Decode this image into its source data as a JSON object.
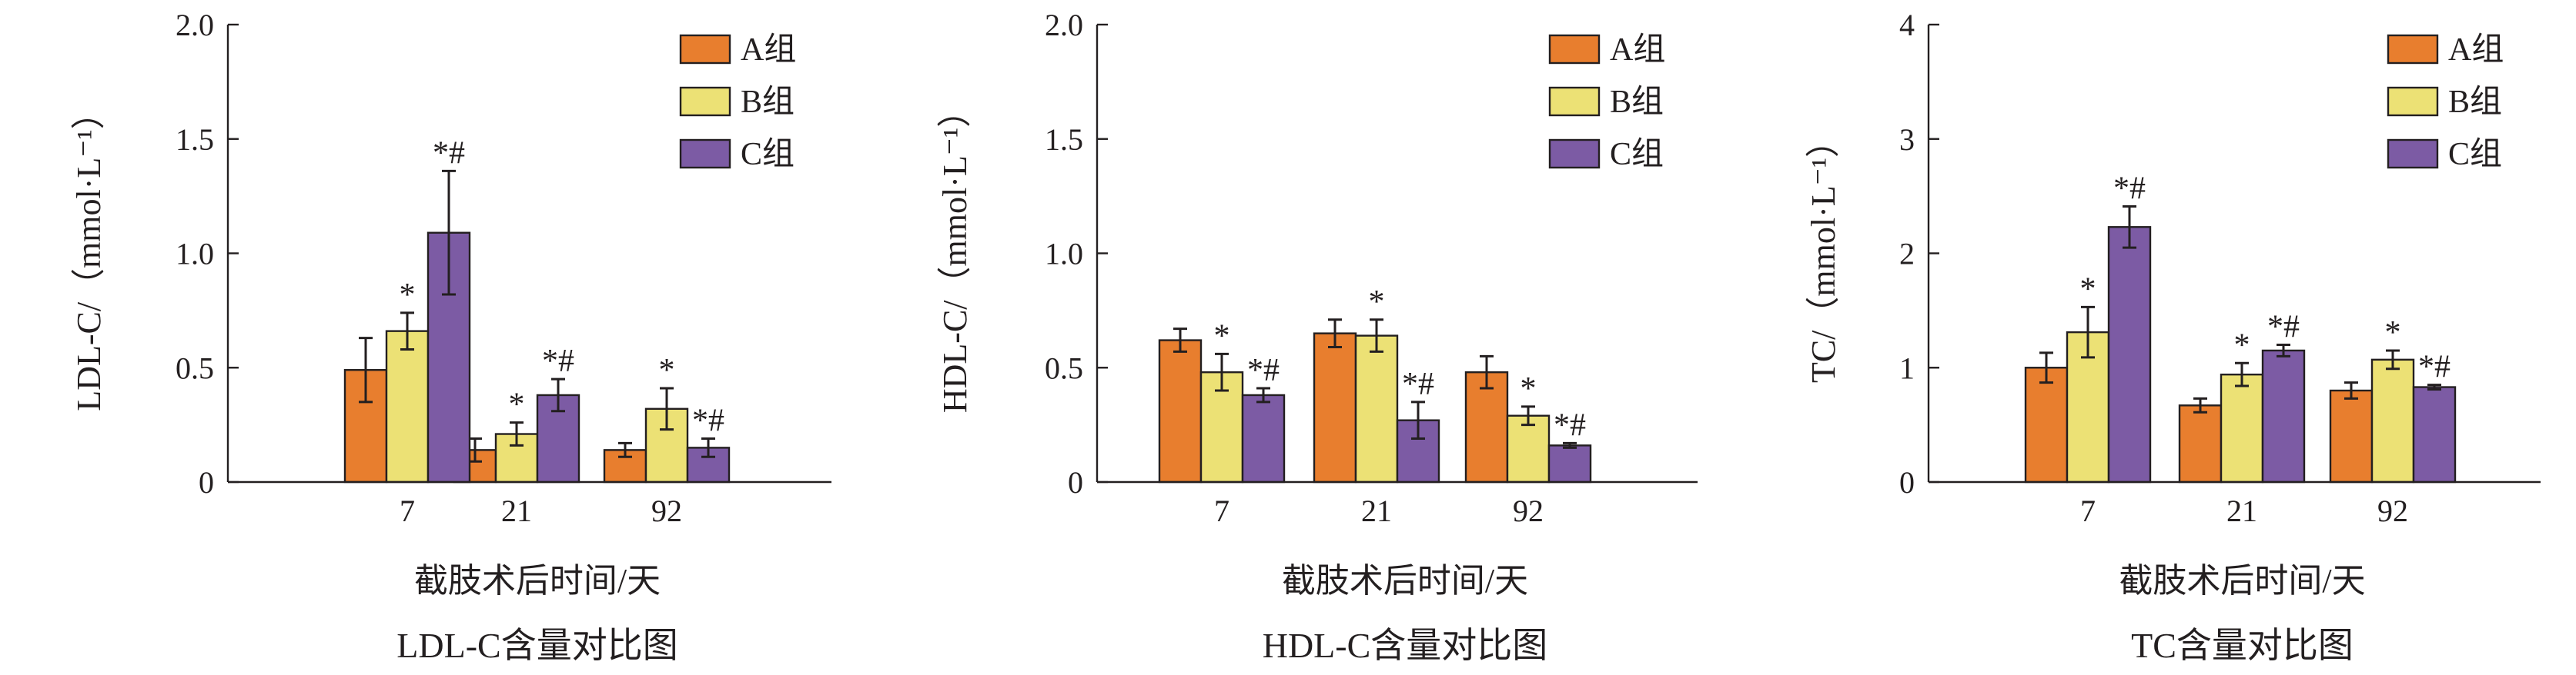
{
  "legend": [
    "A组",
    "B组",
    "C组"
  ],
  "colors": {
    "A": "#e87e2e",
    "B": "#ece175",
    "C": "#7c5ba4"
  },
  "chart_data": [
    {
      "type": "bar",
      "title": "LDL-C含量对比图",
      "xlabel": "截肢术后时间/天",
      "ylabel": "LDL-C/（mmol·L⁻¹）",
      "ylim": [
        0,
        2.0
      ],
      "yticks": [
        0,
        0.5,
        1.0,
        1.5,
        2.0
      ],
      "ytick_labels": [
        "0",
        "0.5",
        "1.0",
        "1.5",
        "2.0"
      ],
      "categories": [
        "7",
        "21",
        "92"
      ],
      "legend_position": "top-right",
      "series": [
        {
          "name": "A组",
          "values": [
            0.49,
            0.14,
            0.14
          ],
          "errors": [
            0.14,
            0.05,
            0.03
          ],
          "marks": [
            "",
            "",
            ""
          ]
        },
        {
          "name": "B组",
          "values": [
            0.66,
            0.21,
            0.32
          ],
          "errors": [
            0.08,
            0.05,
            0.09
          ],
          "marks": [
            "*",
            "*",
            "*"
          ]
        },
        {
          "name": "C组",
          "values": [
            1.09,
            0.38,
            0.15
          ],
          "errors": [
            0.27,
            0.07,
            0.04
          ],
          "marks": [
            "*#",
            "*#",
            "*#"
          ]
        }
      ]
    },
    {
      "type": "bar",
      "title": "HDL-C含量对比图",
      "xlabel": "截肢术后时间/天",
      "ylabel": "HDL-C/（mmol·L⁻¹）",
      "ylim": [
        0,
        2.0
      ],
      "yticks": [
        0,
        0.5,
        1.0,
        1.5,
        2.0
      ],
      "ytick_labels": [
        "0",
        "0.5",
        "1.0",
        "1.5",
        "2.0"
      ],
      "categories": [
        "7",
        "21",
        "92"
      ],
      "legend_position": "top-right",
      "series": [
        {
          "name": "A组",
          "values": [
            0.62,
            0.65,
            0.48
          ],
          "errors": [
            0.05,
            0.06,
            0.07
          ],
          "marks": [
            "",
            "",
            ""
          ]
        },
        {
          "name": "B组",
          "values": [
            0.48,
            0.64,
            0.29
          ],
          "errors": [
            0.08,
            0.07,
            0.04
          ],
          "marks": [
            "*",
            "*",
            "*"
          ]
        },
        {
          "name": "C组",
          "values": [
            0.38,
            0.27,
            0.16
          ],
          "errors": [
            0.03,
            0.08,
            0.01
          ],
          "marks": [
            "*#",
            "*#",
            "*#"
          ]
        }
      ]
    },
    {
      "type": "bar",
      "title": "TC含量对比图",
      "xlabel": "截肢术后时间/天",
      "ylabel": "TC/（mmol·L⁻¹）",
      "ylim": [
        0,
        4
      ],
      "yticks": [
        0,
        1,
        2,
        3,
        4
      ],
      "ytick_labels": [
        "0",
        "1",
        "2",
        "3",
        "4"
      ],
      "categories": [
        "7",
        "21",
        "92"
      ],
      "legend_position": "top-right",
      "series": [
        {
          "name": "A组",
          "values": [
            1.0,
            0.67,
            0.8
          ],
          "errors": [
            0.13,
            0.06,
            0.07
          ],
          "marks": [
            "",
            "",
            ""
          ]
        },
        {
          "name": "B组",
          "values": [
            1.31,
            0.94,
            1.07
          ],
          "errors": [
            0.22,
            0.1,
            0.08
          ],
          "marks": [
            "*",
            "*",
            "*"
          ]
        },
        {
          "name": "C组",
          "values": [
            2.23,
            1.15,
            0.83
          ],
          "errors": [
            0.18,
            0.05,
            0.02
          ],
          "marks": [
            "*#",
            "*#",
            "*#"
          ]
        }
      ]
    }
  ]
}
